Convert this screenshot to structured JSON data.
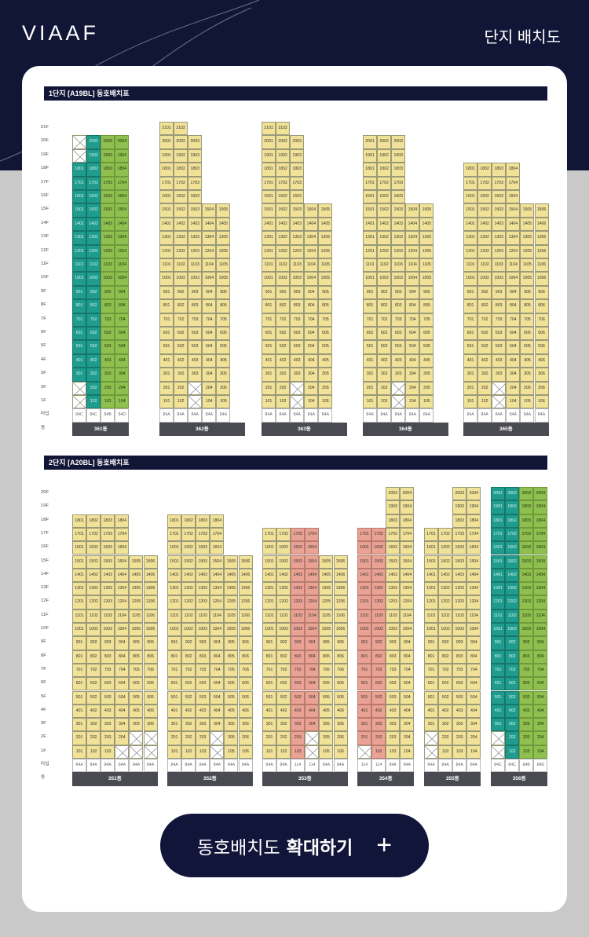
{
  "header": {
    "logo": "VIAAF",
    "title": "단지 배치도"
  },
  "colors": {
    "navy": "#111536",
    "yellow": "#f2e298",
    "teal": "#1f9c8d",
    "green": "#8fbf4f",
    "pink": "#eaa294"
  },
  "sections": [
    {
      "title": "1단지 [A19BL] 동호배치표",
      "floors": [
        "21F",
        "20F",
        "19F",
        "18F",
        "17F",
        "16F",
        "15F",
        "14F",
        "13F",
        "12F",
        "11F",
        "10F",
        "9F",
        "8F",
        "7F",
        "6F",
        "5F",
        "4F",
        "3F",
        "2F",
        "1F",
        "타입",
        "동"
      ],
      "buildings": [
        {
          "name": "361동",
          "cols": 4,
          "top": 20,
          "types": [
            "84C",
            "84C",
            "84B",
            "84D"
          ],
          "colors": [
            "t",
            "t",
            "g",
            "g"
          ],
          "missing": {
            "20": [
              0
            ],
            "19": [
              0
            ],
            "2": [
              0
            ],
            "1": [
              0
            ]
          }
        },
        {
          "name": "362동",
          "cols": 6,
          "top": 21,
          "types": [
            "84A",
            "84A",
            "84A",
            "84A",
            "84A"
          ],
          "colors": [
            "y",
            "y",
            "y",
            "y",
            "y",
            "y"
          ],
          "stairs": {
            "21": 2,
            "20": 3,
            "19": 3,
            "18": 3,
            "17": 3,
            "16": 3
          },
          "missing": {
            "2": [
              2
            ],
            "1": [
              2
            ]
          },
          "skipcol": 5
        },
        {
          "name": "363동",
          "cols": 6,
          "top": 21,
          "types": [
            "84A",
            "84A",
            "84A",
            "84A",
            "84A"
          ],
          "colors": [
            "y",
            "y",
            "y",
            "y",
            "y",
            "y"
          ],
          "stairs": {
            "21": 2,
            "20": 3,
            "19": 3,
            "18": 3,
            "17": 3,
            "16": 3
          },
          "missing": {
            "2": [
              2
            ],
            "1": [
              2
            ]
          },
          "skipcol": 5
        },
        {
          "name": "364동",
          "cols": 6,
          "top": 20,
          "types": [
            "84A",
            "84A",
            "84A",
            "84A",
            "84A"
          ],
          "colors": [
            "y",
            "y",
            "y",
            "y",
            "y",
            "y"
          ],
          "stairs": {
            "20": 3,
            "19": 3,
            "18": 3,
            "17": 3,
            "16": 3
          },
          "missing": {
            "2": [
              2
            ],
            "1": [
              2
            ]
          },
          "skipcol": 5
        },
        {
          "name": "365동",
          "cols": 6,
          "top": 18,
          "types": [
            "84A",
            "84A",
            "84A",
            "84A",
            "84A",
            "84A"
          ],
          "colors": [
            "y",
            "y",
            "y",
            "y",
            "y",
            "y"
          ],
          "stairs": {
            "18": 4,
            "17": 4,
            "16": 4
          },
          "missing": {
            "2": [
              2
            ],
            "1": [
              2
            ]
          }
        }
      ]
    },
    {
      "title": "2단지 [A20BL] 동호배치표",
      "floors": [
        "20F",
        "19F",
        "18F",
        "17F",
        "16F",
        "15F",
        "14F",
        "13F",
        "12F",
        "11F",
        "10F",
        "9F",
        "8F",
        "7F",
        "6F",
        "5F",
        "4F",
        "3F",
        "2F",
        "1F",
        "타입",
        "동"
      ],
      "buildings": [
        {
          "name": "351동",
          "cols": 6,
          "top": 18,
          "types": [
            "84A",
            "84A",
            "84A",
            "84A",
            "84A",
            "84A"
          ],
          "colors": [
            "y",
            "y",
            "y",
            "y",
            "y",
            "y"
          ],
          "stairs": {
            "18": 4,
            "17": 4,
            "16": 4
          },
          "missing": {
            "2": [
              4,
              5
            ],
            "1": [
              3,
              4,
              5
            ]
          }
        },
        {
          "name": "352동",
          "cols": 6,
          "top": 18,
          "types": [
            "84A",
            "84A",
            "84A",
            "84A",
            "84A",
            "84A"
          ],
          "colors": [
            "y",
            "y",
            "y",
            "y",
            "y",
            "y"
          ],
          "stairs": {
            "18": 4,
            "17": 4,
            "16": 4
          },
          "missing": {
            "2": [
              3
            ],
            "1": [
              3
            ]
          }
        },
        {
          "name": "353동",
          "cols": 6,
          "top": 17,
          "types": [
            "84A",
            "84A",
            "114",
            "114",
            "84A",
            "84A"
          ],
          "colors": [
            "y",
            "y",
            "p",
            "p",
            "y",
            "y"
          ],
          "stairs": {
            "17": 4,
            "16": 4
          },
          "missing": {
            "2": [
              3
            ],
            "1": [
              3
            ]
          }
        },
        {
          "name": "354동",
          "cols": 4,
          "top": 20,
          "types": [
            "114",
            "114",
            "84A",
            "84A"
          ],
          "colors": [
            "p",
            "p",
            "y",
            "y"
          ],
          "stairs": {
            "20": -2,
            "19": -2,
            "18": -2
          },
          "missing": {
            "1": [
              0
            ]
          }
        },
        {
          "name": "355동",
          "cols": 4,
          "top": 20,
          "types": [
            "84A",
            "84A",
            "84A",
            "84A"
          ],
          "colors": [
            "y",
            "y",
            "y",
            "y"
          ],
          "stairs": {
            "20": -2,
            "19": -2,
            "18": -2
          },
          "missing": {
            "2": [
              0
            ],
            "1": [
              0
            ]
          }
        },
        {
          "name": "356동",
          "cols": 4,
          "top": 20,
          "types": [
            "84C",
            "84C",
            "84B",
            "84D"
          ],
          "colors": [
            "t",
            "t",
            "g",
            "g"
          ],
          "missing": {
            "2": [
              0
            ],
            "1": [
              0
            ]
          }
        }
      ]
    }
  ],
  "button": {
    "label": "동호배치도",
    "label_strong": "확대하기",
    "icon": "plus-icon"
  }
}
